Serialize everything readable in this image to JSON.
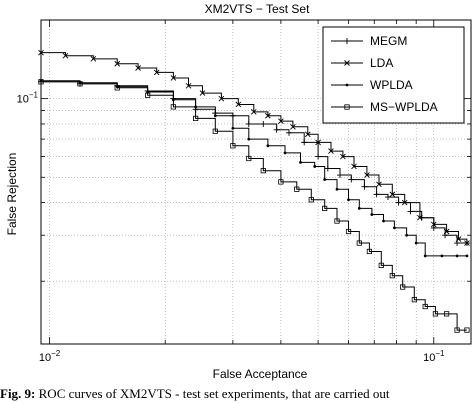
{
  "chart_data": {
    "type": "line",
    "title": "XM2VTS − Test Set",
    "xlabel": "False Acceptance",
    "ylabel": "False Rejection",
    "x_scale": "log",
    "y_scale": "log",
    "xlim": [
      0.0095,
      0.125
    ],
    "ylim": [
      0.0115,
      0.2
    ],
    "x_ticks": [
      {
        "value": 0.01,
        "base": "10",
        "exponent": "−2"
      },
      {
        "value": 0.1,
        "base": "10",
        "exponent": "−1"
      }
    ],
    "y_ticks": [
      {
        "value": 0.1,
        "base": "10",
        "exponent": "−1"
      }
    ],
    "grid": true,
    "legend_position": "top-right",
    "series": [
      {
        "name": "MEGM",
        "marker": "plus",
        "color": "#000000",
        "points": [
          [
            0.0095,
            0.116
          ],
          [
            0.012,
            0.114
          ],
          [
            0.015,
            0.112
          ],
          [
            0.018,
            0.107
          ],
          [
            0.021,
            0.1
          ],
          [
            0.024,
            0.091
          ],
          [
            0.027,
            0.088
          ],
          [
            0.03,
            0.086
          ],
          [
            0.033,
            0.08
          ],
          [
            0.036,
            0.08
          ],
          [
            0.039,
            0.076
          ],
          [
            0.042,
            0.074
          ],
          [
            0.046,
            0.068
          ],
          [
            0.05,
            0.06
          ],
          [
            0.053,
            0.054
          ],
          [
            0.057,
            0.051
          ],
          [
            0.061,
            0.049
          ],
          [
            0.066,
            0.046
          ],
          [
            0.071,
            0.043
          ],
          [
            0.076,
            0.042
          ],
          [
            0.081,
            0.04
          ],
          [
            0.087,
            0.037
          ],
          [
            0.093,
            0.035
          ],
          [
            0.1,
            0.032
          ],
          [
            0.107,
            0.03
          ],
          [
            0.115,
            0.028
          ],
          [
            0.122,
            0.028
          ]
        ]
      },
      {
        "name": "LDA",
        "marker": "x",
        "color": "#000000",
        "points": [
          [
            0.0095,
            0.15
          ],
          [
            0.011,
            0.146
          ],
          [
            0.013,
            0.142
          ],
          [
            0.015,
            0.136
          ],
          [
            0.017,
            0.131
          ],
          [
            0.019,
            0.126
          ],
          [
            0.021,
            0.12
          ],
          [
            0.023,
            0.112
          ],
          [
            0.025,
            0.105
          ],
          [
            0.028,
            0.1
          ],
          [
            0.031,
            0.095
          ],
          [
            0.034,
            0.089
          ],
          [
            0.037,
            0.086
          ],
          [
            0.04,
            0.082
          ],
          [
            0.043,
            0.078
          ],
          [
            0.047,
            0.073
          ],
          [
            0.05,
            0.068
          ],
          [
            0.054,
            0.063
          ],
          [
            0.058,
            0.06
          ],
          [
            0.062,
            0.055
          ],
          [
            0.067,
            0.051
          ],
          [
            0.072,
            0.047
          ],
          [
            0.078,
            0.043
          ],
          [
            0.084,
            0.04
          ],
          [
            0.092,
            0.035
          ],
          [
            0.1,
            0.033
          ],
          [
            0.108,
            0.031
          ],
          [
            0.116,
            0.029
          ],
          [
            0.122,
            0.028
          ]
        ]
      },
      {
        "name": "WPLDA",
        "marker": "dot",
        "color": "#000000",
        "points": [
          [
            0.0095,
            0.117
          ],
          [
            0.012,
            0.115
          ],
          [
            0.015,
            0.111
          ],
          [
            0.018,
            0.106
          ],
          [
            0.021,
            0.099
          ],
          [
            0.024,
            0.093
          ],
          [
            0.027,
            0.086
          ],
          [
            0.03,
            0.077
          ],
          [
            0.033,
            0.07
          ],
          [
            0.037,
            0.066
          ],
          [
            0.041,
            0.062
          ],
          [
            0.045,
            0.057
          ],
          [
            0.049,
            0.055
          ],
          [
            0.052,
            0.049
          ],
          [
            0.056,
            0.045
          ],
          [
            0.06,
            0.041
          ],
          [
            0.064,
            0.038
          ],
          [
            0.069,
            0.036
          ],
          [
            0.074,
            0.034
          ],
          [
            0.079,
            0.032
          ],
          [
            0.085,
            0.03
          ],
          [
            0.09,
            0.028
          ],
          [
            0.095,
            0.025
          ],
          [
            0.105,
            0.025
          ],
          [
            0.115,
            0.025
          ],
          [
            0.122,
            0.025
          ]
        ]
      },
      {
        "name": "MS−WPLDA",
        "marker": "square",
        "color": "#000000",
        "points": [
          [
            0.0095,
            0.116
          ],
          [
            0.012,
            0.114
          ],
          [
            0.015,
            0.11
          ],
          [
            0.018,
            0.103
          ],
          [
            0.021,
            0.093
          ],
          [
            0.024,
            0.084
          ],
          [
            0.027,
            0.075
          ],
          [
            0.03,
            0.066
          ],
          [
            0.033,
            0.059
          ],
          [
            0.036,
            0.053
          ],
          [
            0.04,
            0.048
          ],
          [
            0.044,
            0.045
          ],
          [
            0.048,
            0.041
          ],
          [
            0.052,
            0.038
          ],
          [
            0.056,
            0.034
          ],
          [
            0.06,
            0.031
          ],
          [
            0.064,
            0.028
          ],
          [
            0.068,
            0.026
          ],
          [
            0.073,
            0.023
          ],
          [
            0.078,
            0.021
          ],
          [
            0.083,
            0.019
          ],
          [
            0.089,
            0.017
          ],
          [
            0.095,
            0.016
          ],
          [
            0.101,
            0.015
          ],
          [
            0.108,
            0.015
          ],
          [
            0.115,
            0.013
          ],
          [
            0.122,
            0.013
          ]
        ]
      }
    ]
  },
  "caption": {
    "label": "Fig. 9:",
    "text": " ROC curves of XM2VTS - test set experiments, that are carried out"
  }
}
